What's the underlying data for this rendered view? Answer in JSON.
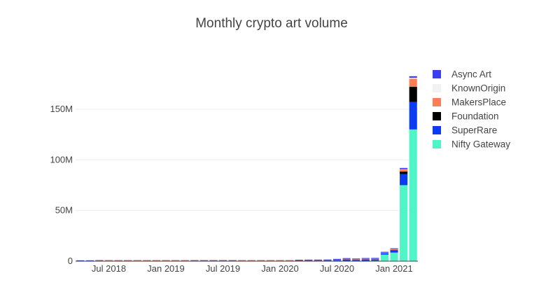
{
  "chart_data": {
    "type": "bar",
    "stacked": true,
    "title": "Monthly crypto art volume",
    "xlabel": "",
    "ylabel": "",
    "ylim": [
      0,
      190000000
    ],
    "yticks": [
      {
        "value": 0,
        "label": "0"
      },
      {
        "value": 50000000,
        "label": "50M"
      },
      {
        "value": 100000000,
        "label": "100M"
      },
      {
        "value": 150000000,
        "label": "150M"
      }
    ],
    "xticks": [
      {
        "index": 3,
        "label": "Jul 2018"
      },
      {
        "index": 9,
        "label": "Jan 2019"
      },
      {
        "index": 15,
        "label": "Jul 2019"
      },
      {
        "index": 21,
        "label": "Jan 2020"
      },
      {
        "index": 27,
        "label": "Jul 2020"
      },
      {
        "index": 33,
        "label": "Jan 2021"
      }
    ],
    "categories": [
      "2018-04",
      "2018-05",
      "2018-06",
      "2018-07",
      "2018-08",
      "2018-09",
      "2018-10",
      "2018-11",
      "2018-12",
      "2019-01",
      "2019-02",
      "2019-03",
      "2019-04",
      "2019-05",
      "2019-06",
      "2019-07",
      "2019-08",
      "2019-09",
      "2019-10",
      "2019-11",
      "2019-12",
      "2020-01",
      "2020-02",
      "2020-03",
      "2020-04",
      "2020-05",
      "2020-06",
      "2020-07",
      "2020-08",
      "2020-09",
      "2020-10",
      "2020-11",
      "2020-12",
      "2021-01",
      "2021-02",
      "2021-03"
    ],
    "legend_position": "top-right",
    "grid": true,
    "series": [
      {
        "name": "Nifty Gateway",
        "color": "#4ef5c6",
        "values": [
          0,
          0,
          0,
          0,
          0,
          0,
          0,
          0,
          0,
          0,
          0,
          0,
          0,
          0,
          0,
          0,
          0,
          0,
          0,
          0,
          0,
          0,
          0,
          0,
          0,
          0,
          0,
          0,
          0,
          0,
          300000,
          500000,
          6500000,
          8500000,
          75000000,
          130000000
        ]
      },
      {
        "name": "SuperRare",
        "color": "#0b3cf2",
        "values": [
          600000,
          500000,
          500000,
          400000,
          400000,
          400000,
          400000,
          400000,
          400000,
          400000,
          400000,
          400000,
          500000,
          500000,
          500000,
          500000,
          500000,
          400000,
          400000,
          400000,
          400000,
          400000,
          400000,
          400000,
          500000,
          500000,
          600000,
          1100000,
          1700000,
          1300000,
          1400000,
          1300000,
          1300000,
          2500000,
          11000000,
          27000000
        ]
      },
      {
        "name": "Foundation",
        "color": "#000000",
        "values": [
          0,
          0,
          0,
          0,
          0,
          0,
          0,
          0,
          0,
          0,
          0,
          0,
          0,
          0,
          0,
          0,
          0,
          0,
          0,
          0,
          0,
          0,
          0,
          0,
          0,
          0,
          0,
          0,
          0,
          0,
          0,
          0,
          0,
          0,
          2500000,
          15000000
        ]
      },
      {
        "name": "MakersPlace",
        "color": "#fd7f56",
        "values": [
          0,
          0,
          100000,
          100000,
          100000,
          100000,
          100000,
          100000,
          200000,
          100000,
          100000,
          100000,
          100000,
          100000,
          200000,
          300000,
          200000,
          200000,
          200000,
          200000,
          200000,
          200000,
          200000,
          200000,
          200000,
          200000,
          200000,
          300000,
          400000,
          400000,
          500000,
          500000,
          500000,
          700000,
          2000000,
          8000000
        ]
      },
      {
        "name": "KnownOrigin",
        "color": "#f2f2f2",
        "values": [
          0,
          0,
          0,
          0,
          0,
          0,
          0,
          0,
          0,
          0,
          0,
          0,
          0,
          0,
          0,
          0,
          0,
          0,
          0,
          0,
          0,
          0,
          0,
          0,
          0,
          0,
          0,
          0,
          100000,
          100000,
          100000,
          100000,
          100000,
          200000,
          300000,
          1000000
        ]
      },
      {
        "name": "Async Art",
        "color": "#3d3df0",
        "values": [
          0,
          0,
          0,
          0,
          0,
          0,
          0,
          0,
          0,
          0,
          0,
          0,
          0,
          0,
          0,
          0,
          0,
          0,
          0,
          0,
          0,
          0,
          0,
          100000,
          100000,
          100000,
          100000,
          200000,
          300000,
          200000,
          300000,
          300000,
          300000,
          800000,
          1200000,
          1500000
        ]
      }
    ],
    "legend_order": [
      "Async Art",
      "KnownOrigin",
      "MakersPlace",
      "Foundation",
      "SuperRare",
      "Nifty Gateway"
    ]
  }
}
